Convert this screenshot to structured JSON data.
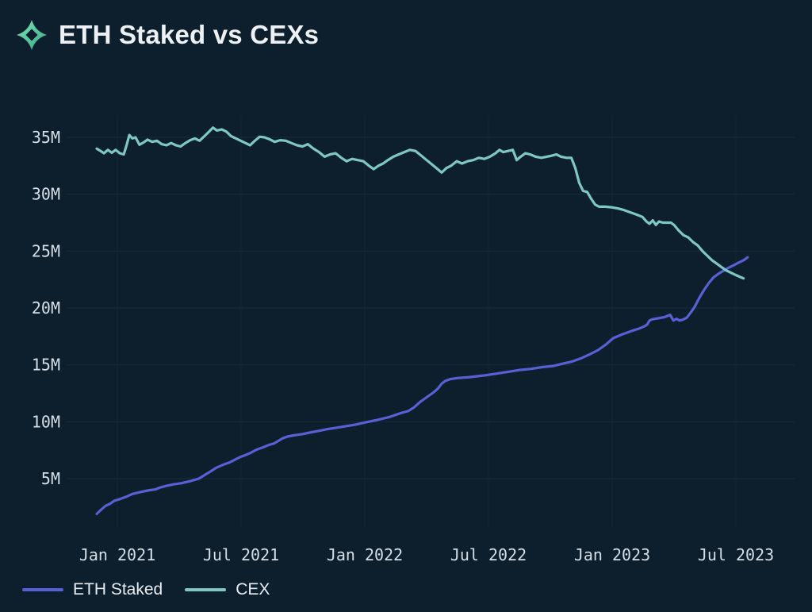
{
  "header": {
    "title": "ETH Staked vs CEXs",
    "logo": "sparkle-icon"
  },
  "colors": {
    "background": "#0d1e2c",
    "grid": "#21333f",
    "axis_text": "#d6dfe6",
    "title_text": "#edf1f5",
    "logo_gradient_start": "#80e5b6",
    "logo_gradient_end": "#38a487"
  },
  "chart_data": {
    "type": "line",
    "title": "ETH Staked vs CEXs",
    "x_unit": "months since Jan 2021",
    "y_unit": "ETH (millions)",
    "grid": true,
    "legend_position": "bottom-left",
    "ylim_millions": [
      1,
      37
    ],
    "y_ticks": [
      {
        "value": 5,
        "label": "5M"
      },
      {
        "value": 10,
        "label": "10M"
      },
      {
        "value": 15,
        "label": "15M"
      },
      {
        "value": 20,
        "label": "20M"
      },
      {
        "value": 25,
        "label": "25M"
      },
      {
        "value": 30,
        "label": "30M"
      },
      {
        "value": 35,
        "label": "35M"
      }
    ],
    "x_ticks": [
      {
        "value": 0,
        "label": "Jan 2021"
      },
      {
        "value": 6,
        "label": "Jul 2021"
      },
      {
        "value": 12,
        "label": "Jan 2022"
      },
      {
        "value": 18,
        "label": "Jul 2022"
      },
      {
        "value": 24,
        "label": "Jan 2023"
      },
      {
        "value": 30,
        "label": "Jul 2023"
      }
    ],
    "series": [
      {
        "name": "ETH Staked",
        "color": "#5760d4",
        "points": [
          [
            -1,
            1.9
          ],
          [
            -0.77,
            2.3
          ],
          [
            -0.58,
            2.6
          ],
          [
            -0.35,
            2.8
          ],
          [
            -0.15,
            3.05
          ],
          [
            0.12,
            3.2
          ],
          [
            0.42,
            3.4
          ],
          [
            0.73,
            3.65
          ],
          [
            1.07,
            3.8
          ],
          [
            1.46,
            3.95
          ],
          [
            1.84,
            4.05
          ],
          [
            2.03,
            4.2
          ],
          [
            2.34,
            4.35
          ],
          [
            2.72,
            4.5
          ],
          [
            3.11,
            4.6
          ],
          [
            3.57,
            4.8
          ],
          [
            3.95,
            5.0
          ],
          [
            4.26,
            5.35
          ],
          [
            4.53,
            5.65
          ],
          [
            4.79,
            5.95
          ],
          [
            5.1,
            6.2
          ],
          [
            5.41,
            6.4
          ],
          [
            5.68,
            6.65
          ],
          [
            5.95,
            6.9
          ],
          [
            6.18,
            7.05
          ],
          [
            6.44,
            7.25
          ],
          [
            6.75,
            7.55
          ],
          [
            7.06,
            7.75
          ],
          [
            7.33,
            7.95
          ],
          [
            7.6,
            8.1
          ],
          [
            7.79,
            8.3
          ],
          [
            8.02,
            8.55
          ],
          [
            8.25,
            8.7
          ],
          [
            8.55,
            8.8
          ],
          [
            8.94,
            8.9
          ],
          [
            9.32,
            9.05
          ],
          [
            9.78,
            9.2
          ],
          [
            10.17,
            9.35
          ],
          [
            10.55,
            9.45
          ],
          [
            11.05,
            9.6
          ],
          [
            11.55,
            9.75
          ],
          [
            12.04,
            9.95
          ],
          [
            12.58,
            10.15
          ],
          [
            13.16,
            10.4
          ],
          [
            13.73,
            10.75
          ],
          [
            14.12,
            10.95
          ],
          [
            14.38,
            11.25
          ],
          [
            14.69,
            11.75
          ],
          [
            15.0,
            12.15
          ],
          [
            15.31,
            12.55
          ],
          [
            15.54,
            12.9
          ],
          [
            15.73,
            13.35
          ],
          [
            15.92,
            13.6
          ],
          [
            16.15,
            13.75
          ],
          [
            16.53,
            13.85
          ],
          [
            16.99,
            13.9
          ],
          [
            17.45,
            14.0
          ],
          [
            17.91,
            14.1
          ],
          [
            18.45,
            14.25
          ],
          [
            18.99,
            14.4
          ],
          [
            19.52,
            14.55
          ],
          [
            20.06,
            14.65
          ],
          [
            20.6,
            14.8
          ],
          [
            21.14,
            14.9
          ],
          [
            21.6,
            15.1
          ],
          [
            22.06,
            15.3
          ],
          [
            22.52,
            15.6
          ],
          [
            22.94,
            15.95
          ],
          [
            23.32,
            16.3
          ],
          [
            23.7,
            16.8
          ],
          [
            24.05,
            17.35
          ],
          [
            24.51,
            17.7
          ],
          [
            24.97,
            18.0
          ],
          [
            25.32,
            18.2
          ],
          [
            25.58,
            18.4
          ],
          [
            25.7,
            18.55
          ],
          [
            25.81,
            18.9
          ],
          [
            25.93,
            19.0
          ],
          [
            26.24,
            19.1
          ],
          [
            26.54,
            19.2
          ],
          [
            26.81,
            19.4
          ],
          [
            26.97,
            18.9
          ],
          [
            27.12,
            19.05
          ],
          [
            27.27,
            18.9
          ],
          [
            27.46,
            19.0
          ],
          [
            27.62,
            19.15
          ],
          [
            27.81,
            19.6
          ],
          [
            28.0,
            20.1
          ],
          [
            28.23,
            20.9
          ],
          [
            28.46,
            21.6
          ],
          [
            28.69,
            22.2
          ],
          [
            28.92,
            22.7
          ],
          [
            29.15,
            23.0
          ],
          [
            29.38,
            23.25
          ],
          [
            29.61,
            23.5
          ],
          [
            29.88,
            23.75
          ],
          [
            30.15,
            24.0
          ],
          [
            30.38,
            24.2
          ],
          [
            30.57,
            24.45
          ]
        ]
      },
      {
        "name": "CEX",
        "color": "#7ec8c4",
        "points": [
          [
            -1,
            34.0
          ],
          [
            -0.81,
            33.8
          ],
          [
            -0.65,
            33.6
          ],
          [
            -0.46,
            33.9
          ],
          [
            -0.27,
            33.65
          ],
          [
            -0.08,
            33.9
          ],
          [
            0.12,
            33.6
          ],
          [
            0.31,
            33.5
          ],
          [
            0.46,
            34.4
          ],
          [
            0.58,
            35.2
          ],
          [
            0.73,
            34.9
          ],
          [
            0.88,
            35.0
          ],
          [
            1.07,
            34.35
          ],
          [
            1.27,
            34.55
          ],
          [
            1.46,
            34.8
          ],
          [
            1.69,
            34.6
          ],
          [
            1.92,
            34.7
          ],
          [
            2.15,
            34.4
          ],
          [
            2.38,
            34.3
          ],
          [
            2.61,
            34.5
          ],
          [
            2.84,
            34.3
          ],
          [
            3.07,
            34.2
          ],
          [
            3.3,
            34.5
          ],
          [
            3.53,
            34.75
          ],
          [
            3.76,
            34.9
          ],
          [
            3.99,
            34.7
          ],
          [
            4.22,
            35.1
          ],
          [
            4.45,
            35.5
          ],
          [
            4.64,
            35.85
          ],
          [
            4.83,
            35.6
          ],
          [
            5.06,
            35.7
          ],
          [
            5.29,
            35.5
          ],
          [
            5.52,
            35.1
          ],
          [
            5.75,
            34.9
          ],
          [
            5.98,
            34.7
          ],
          [
            6.21,
            34.5
          ],
          [
            6.44,
            34.3
          ],
          [
            6.67,
            34.7
          ],
          [
            6.9,
            35.05
          ],
          [
            7.13,
            35.0
          ],
          [
            7.36,
            34.85
          ],
          [
            7.63,
            34.6
          ],
          [
            7.9,
            34.75
          ],
          [
            8.17,
            34.7
          ],
          [
            8.44,
            34.5
          ],
          [
            8.71,
            34.3
          ],
          [
            8.98,
            34.2
          ],
          [
            9.24,
            34.4
          ],
          [
            9.51,
            34.0
          ],
          [
            9.78,
            33.7
          ],
          [
            10.05,
            33.3
          ],
          [
            10.32,
            33.5
          ],
          [
            10.59,
            33.6
          ],
          [
            10.86,
            33.2
          ],
          [
            11.12,
            32.9
          ],
          [
            11.39,
            33.1
          ],
          [
            11.66,
            33.0
          ],
          [
            11.93,
            32.9
          ],
          [
            12.2,
            32.5
          ],
          [
            12.43,
            32.2
          ],
          [
            12.66,
            32.5
          ],
          [
            12.89,
            32.7
          ],
          [
            13.12,
            33.0
          ],
          [
            13.39,
            33.3
          ],
          [
            13.65,
            33.5
          ],
          [
            13.92,
            33.7
          ],
          [
            14.19,
            33.9
          ],
          [
            14.46,
            33.8
          ],
          [
            14.73,
            33.4
          ],
          [
            15.0,
            33.0
          ],
          [
            15.27,
            32.6
          ],
          [
            15.54,
            32.2
          ],
          [
            15.73,
            31.9
          ],
          [
            15.96,
            32.3
          ],
          [
            16.19,
            32.5
          ],
          [
            16.46,
            32.9
          ],
          [
            16.72,
            32.7
          ],
          [
            16.99,
            32.9
          ],
          [
            17.26,
            33.0
          ],
          [
            17.53,
            33.2
          ],
          [
            17.8,
            33.1
          ],
          [
            18.07,
            33.3
          ],
          [
            18.34,
            33.6
          ],
          [
            18.53,
            33.9
          ],
          [
            18.72,
            33.7
          ],
          [
            18.95,
            33.8
          ],
          [
            19.18,
            33.9
          ],
          [
            19.37,
            33.0
          ],
          [
            19.56,
            33.3
          ],
          [
            19.79,
            33.6
          ],
          [
            20.02,
            33.5
          ],
          [
            20.29,
            33.3
          ],
          [
            20.56,
            33.2
          ],
          [
            20.83,
            33.3
          ],
          [
            21.1,
            33.4
          ],
          [
            21.29,
            33.5
          ],
          [
            21.52,
            33.3
          ],
          [
            21.79,
            33.2
          ],
          [
            22.02,
            33.2
          ],
          [
            22.21,
            32.3
          ],
          [
            22.4,
            31.0
          ],
          [
            22.59,
            30.3
          ],
          [
            22.79,
            30.2
          ],
          [
            22.98,
            29.6
          ],
          [
            23.17,
            29.1
          ],
          [
            23.36,
            28.9
          ],
          [
            23.66,
            28.9
          ],
          [
            23.97,
            28.85
          ],
          [
            24.28,
            28.75
          ],
          [
            24.58,
            28.6
          ],
          [
            24.89,
            28.4
          ],
          [
            25.2,
            28.2
          ],
          [
            25.47,
            28.0
          ],
          [
            25.66,
            27.6
          ],
          [
            25.81,
            27.4
          ],
          [
            25.97,
            27.7
          ],
          [
            26.12,
            27.3
          ],
          [
            26.27,
            27.6
          ],
          [
            26.46,
            27.5
          ],
          [
            26.65,
            27.5
          ],
          [
            26.85,
            27.5
          ],
          [
            27.0,
            27.3
          ],
          [
            27.23,
            26.8
          ],
          [
            27.46,
            26.4
          ],
          [
            27.69,
            26.2
          ],
          [
            27.92,
            25.8
          ],
          [
            28.15,
            25.5
          ],
          [
            28.38,
            25.0
          ],
          [
            28.61,
            24.6
          ],
          [
            28.84,
            24.2
          ],
          [
            29.07,
            23.9
          ],
          [
            29.3,
            23.6
          ],
          [
            29.53,
            23.3
          ],
          [
            29.76,
            23.1
          ],
          [
            29.99,
            22.9
          ],
          [
            30.18,
            22.75
          ],
          [
            30.37,
            22.6
          ]
        ]
      }
    ]
  },
  "legend": {
    "items": [
      {
        "label": "ETH Staked"
      },
      {
        "label": "CEX"
      }
    ]
  }
}
